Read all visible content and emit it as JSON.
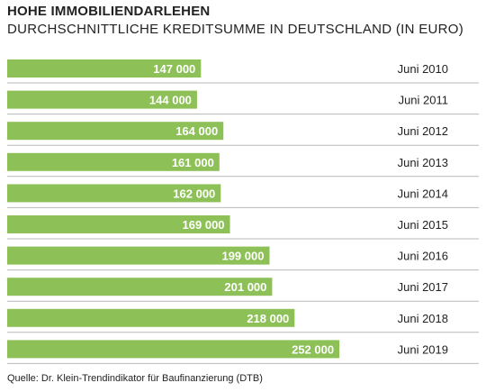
{
  "chart_data": {
    "type": "bar",
    "orientation": "horizontal",
    "title": "HOHE IMMOBILIENDARLEHEN",
    "subtitle": "DURCHSCHNITTLICHE KREDITSUMME IN DEUTSCHLAND (IN EURO)",
    "categories": [
      "Juni 2010",
      "Juni 2011",
      "Juni 2012",
      "Juni 2013",
      "Juni 2014",
      "Juni 2015",
      "Juni 2016",
      "Juni 2017",
      "Juni 2018",
      "Juni 2019"
    ],
    "values": [
      147000,
      144000,
      164000,
      161000,
      162000,
      169000,
      199000,
      201000,
      218000,
      252000
    ],
    "value_labels": [
      "147 000",
      "144 000",
      "164 000",
      "161 000",
      "162 000",
      "169 000",
      "199 000",
      "201 000",
      "218 000",
      "252 000"
    ],
    "xlim": [
      0,
      340000
    ],
    "grid": false,
    "bar_color": "#8dc157",
    "separator_color": "#b8b8b8"
  },
  "source": "Quelle: Dr. Klein-Trendindikator für Baufinanzierung (DTB)"
}
